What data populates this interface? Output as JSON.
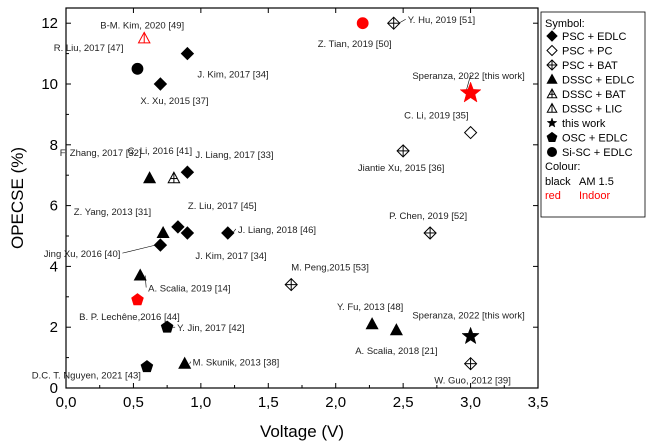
{
  "chart_data": {
    "type": "scatter",
    "xlabel": "Voltage (V)",
    "ylabel": "OPECSE (%)",
    "xlim": [
      0,
      3.5
    ],
    "ylim": [
      0,
      12.5
    ],
    "x_ticks": [
      "0,0",
      "0,5",
      "1,0",
      "1,5",
      "2,0",
      "2,5",
      "3,0",
      "3,5"
    ],
    "y_ticks": [
      "0",
      "2",
      "4",
      "6",
      "8",
      "10",
      "12"
    ],
    "grid": false,
    "legend_position": "right",
    "legend": {
      "symbol_title": "Symbol:",
      "symbols": [
        {
          "marker": "diamond-filled",
          "label": "PSC + EDLC"
        },
        {
          "marker": "diamond-open",
          "label": "PSC + PC"
        },
        {
          "marker": "diamond-cross",
          "label": "PSC + BAT"
        },
        {
          "marker": "triangle-filled",
          "label": "DSSC + EDLC"
        },
        {
          "marker": "triangle-cross",
          "label": "DSSC + BAT"
        },
        {
          "marker": "triangle-line",
          "label": "DSSC + LIC"
        },
        {
          "marker": "star-filled",
          "label": "this work"
        },
        {
          "marker": "pentagon-filled",
          "label": "OSC + EDLC"
        },
        {
          "marker": "circle-filled",
          "label": "Si-SC + EDLC"
        }
      ],
      "colour_title": "Colour:",
      "colours": [
        {
          "key": "black",
          "value": "AM 1.5",
          "color": "#000000"
        },
        {
          "key": "red",
          "value": "Indoor",
          "color": "#ff0000"
        }
      ]
    },
    "colors": {
      "black": "#000000",
      "red": "#ff0000"
    },
    "points": [
      {
        "x": 0.9,
        "y": 11.0,
        "marker": "diamond-filled",
        "color": "black",
        "label": "J. Kim, 2017 [34]",
        "anchor": "start"
      },
      {
        "x": 0.7,
        "y": 10.0,
        "marker": "diamond-filled",
        "color": "black",
        "label": "X. Xu, 2015 [37]",
        "anchor": "start"
      },
      {
        "x": 0.9,
        "y": 7.1,
        "marker": "diamond-filled",
        "color": "black",
        "label": "J. Liang, 2017 [33]",
        "anchor": "start"
      },
      {
        "x": 0.83,
        "y": 5.3,
        "marker": "diamond-filled",
        "color": "black",
        "label": "Z. Liu, 2017 [45]",
        "anchor": "start"
      },
      {
        "x": 0.9,
        "y": 5.1,
        "marker": "diamond-filled",
        "color": "black",
        "label": "J. Kim, 2017 [34]",
        "anchor": "start"
      },
      {
        "x": 1.2,
        "y": 5.1,
        "marker": "diamond-filled",
        "color": "black",
        "label": "J. Liang, 2018 [46]",
        "anchor": "start"
      },
      {
        "x": 0.7,
        "y": 4.7,
        "marker": "diamond-filled",
        "color": "black",
        "label": "Jing Xu, 2016 [40]",
        "anchor": "end"
      },
      {
        "x": 3.0,
        "y": 8.4,
        "marker": "diamond-open",
        "color": "black",
        "label": "C. Li, 2019 [35]",
        "anchor": "end"
      },
      {
        "x": 2.43,
        "y": 12.0,
        "marker": "diamond-cross",
        "color": "black",
        "label": "Y. Hu, 2019 [51]",
        "anchor": "start"
      },
      {
        "x": 2.5,
        "y": 7.8,
        "marker": "diamond-cross",
        "color": "black",
        "label": "Jiantie Xu, 2015 [36]",
        "anchor": "middle"
      },
      {
        "x": 2.7,
        "y": 5.1,
        "marker": "diamond-cross",
        "color": "black",
        "label": "P. Chen, 2019 [52]",
        "anchor": "middle"
      },
      {
        "x": 1.67,
        "y": 3.4,
        "marker": "diamond-cross",
        "color": "black",
        "label": "M. Peng,2015 [53]",
        "anchor": "start"
      },
      {
        "x": 3.0,
        "y": 0.8,
        "marker": "diamond-cross",
        "color": "black",
        "label": "W. Guo, 2012 [39]",
        "anchor": "middle"
      },
      {
        "x": 0.62,
        "y": 6.9,
        "marker": "triangle-filled",
        "color": "black",
        "label": "F. Zhang, 2017 [32]",
        "anchor": "end"
      },
      {
        "x": 0.72,
        "y": 5.1,
        "marker": "triangle-filled",
        "color": "black",
        "label": "Z. Yang, 2013 [31]",
        "anchor": "end"
      },
      {
        "x": 0.55,
        "y": 3.7,
        "marker": "triangle-filled",
        "color": "black",
        "label": "A. Scalia, 2019 [14]",
        "anchor": "start"
      },
      {
        "x": 2.27,
        "y": 2.1,
        "marker": "triangle-filled",
        "color": "black",
        "label": "Y. Fu, 2013 [48]",
        "anchor": "middle"
      },
      {
        "x": 2.45,
        "y": 1.9,
        "marker": "triangle-filled",
        "color": "black",
        "label": "A. Scalia, 2018 [21]",
        "anchor": "middle"
      },
      {
        "x": 0.88,
        "y": 0.8,
        "marker": "triangle-filled",
        "color": "black",
        "label": "M. Skunik, 2013 [38]",
        "anchor": "start"
      },
      {
        "x": 0.8,
        "y": 6.9,
        "marker": "triangle-cross",
        "color": "black",
        "label": "C. Li, 2016 [41]",
        "anchor": "middle"
      },
      {
        "x": 0.58,
        "y": 11.5,
        "marker": "triangle-line",
        "color": "red",
        "label": "B-M. Kim, 2020 [49]",
        "anchor": "middle"
      },
      {
        "x": 3.0,
        "y": 9.7,
        "marker": "star-filled",
        "color": "red",
        "label": "Speranza, 2022 [this work]",
        "anchor": "middle"
      },
      {
        "x": 3.0,
        "y": 1.7,
        "marker": "star-filled",
        "color": "black",
        "label": "Speranza, 2022 [this work]",
        "anchor": "middle"
      },
      {
        "x": 0.53,
        "y": 2.9,
        "marker": "pentagon-filled",
        "color": "red",
        "label": "B. P. Lechêne,2016 [44]",
        "anchor": "middle"
      },
      {
        "x": 0.75,
        "y": 2.0,
        "marker": "pentagon-filled",
        "color": "black",
        "label": "Y. Jin, 2017 [42]",
        "anchor": "start"
      },
      {
        "x": 0.6,
        "y": 0.7,
        "marker": "pentagon-filled",
        "color": "black",
        "label": "D.C. T. Nguyen, 2021 [43]",
        "anchor": "end"
      },
      {
        "x": 2.2,
        "y": 12.0,
        "marker": "circle-filled",
        "color": "red",
        "label": "Z. Tian, 2019 [50]",
        "anchor": "middle"
      },
      {
        "x": 0.53,
        "y": 10.5,
        "marker": "circle-filled",
        "color": "black",
        "label": "R. Liu, 2017 [47]",
        "anchor": "end"
      }
    ]
  }
}
